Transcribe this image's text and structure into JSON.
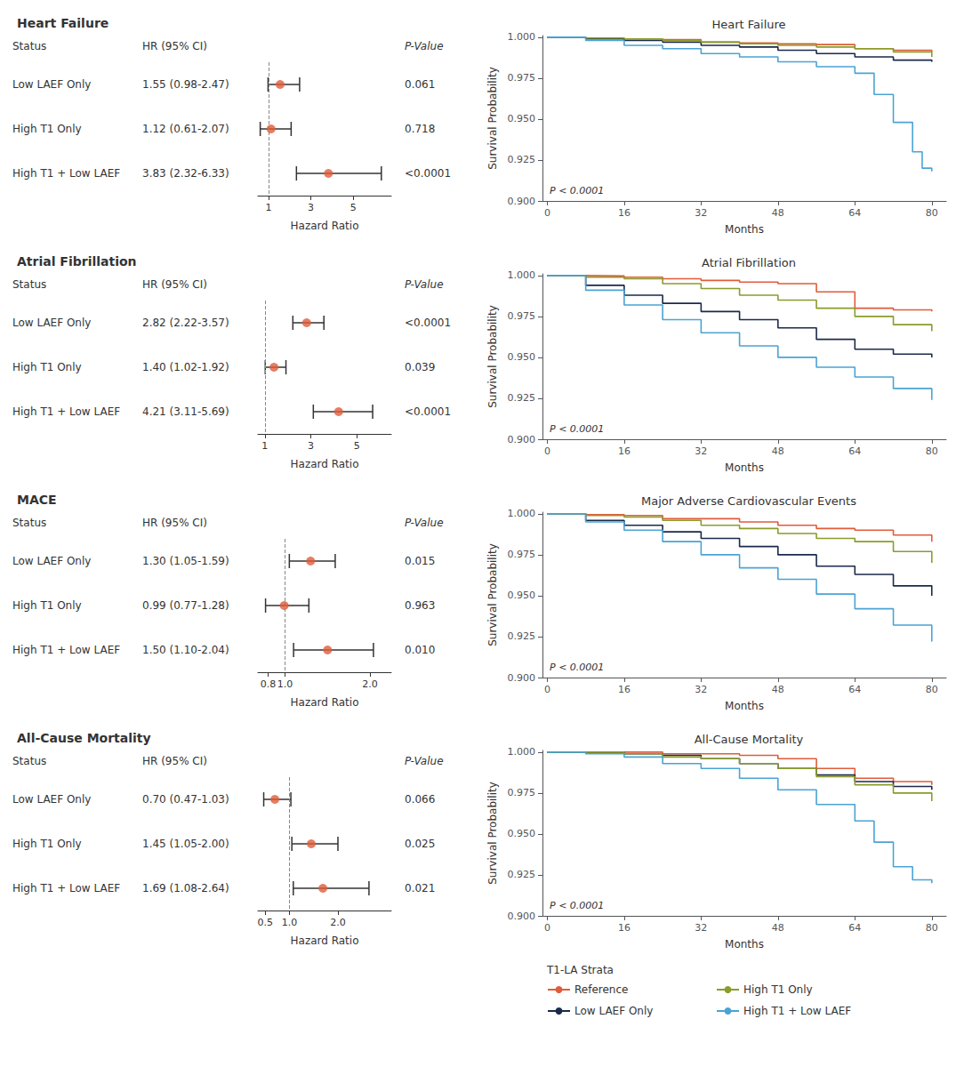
{
  "chart_data": [
    {
      "type": "forest",
      "title": "Heart Failure",
      "columns": [
        "Status",
        "HR (95% CI)",
        "P-Value"
      ],
      "categories": [
        "Low LAEF Only",
        "High T1 Only",
        "High T1 + Low LAEF"
      ],
      "ci_labels": [
        "1.55 (0.98-2.47)",
        "1.12 (0.61-2.07)",
        "3.83 (2.32-6.33)"
      ],
      "p_values": [
        "0.061",
        "0.718",
        "<0.0001"
      ],
      "values": [
        1.55,
        1.12,
        3.83
      ],
      "lo": [
        0.98,
        0.61,
        2.32
      ],
      "hi": [
        2.47,
        2.07,
        6.33
      ],
      "reference_line": 1,
      "color": "#E05C3A",
      "xlim": [
        0.5,
        6.8
      ],
      "xticks": [
        1,
        3,
        5
      ],
      "xlabel": "Hazard Ratio",
      "grid": false
    },
    {
      "type": "step",
      "title": "Heart Failure",
      "xlabel": "Months",
      "ylabel": "Survival Probability",
      "xlim": [
        -1,
        83
      ],
      "xticks": [
        0,
        16,
        32,
        48,
        64,
        80
      ],
      "ylim": [
        0.9,
        1.001
      ],
      "yticks": [
        {
          "value": 0.9,
          "label": "0.900"
        },
        0.925,
        {
          "value": 0.95,
          "label": "0.950"
        },
        0.975,
        {
          "value": 1,
          "label": "1.000"
        }
      ],
      "annotation": "P < 0.0001",
      "grid": false,
      "series": [
        {
          "name": "Reference",
          "color": "#E05C3A",
          "x": [
            0,
            8,
            16,
            24,
            32,
            40,
            48,
            56,
            64,
            72,
            80
          ],
          "values": [
            1.0,
            0.9995,
            0.999,
            0.9985,
            0.997,
            0.9965,
            0.996,
            0.9955,
            0.993,
            0.992,
            0.991
          ]
        },
        {
          "name": "Low LAEF Only",
          "color": "#1B2A4A",
          "x": [
            0,
            8,
            16,
            24,
            32,
            40,
            48,
            56,
            64,
            72,
            80
          ],
          "values": [
            1.0,
            0.999,
            0.998,
            0.997,
            0.995,
            0.994,
            0.992,
            0.99,
            0.988,
            0.986,
            0.985
          ]
        },
        {
          "name": "High T1 Only",
          "color": "#8B9C2A",
          "x": [
            0,
            8,
            16,
            24,
            32,
            40,
            48,
            56,
            64,
            72,
            80
          ],
          "values": [
            1.0,
            0.9995,
            0.999,
            0.998,
            0.997,
            0.996,
            0.995,
            0.994,
            0.993,
            0.991,
            0.988
          ]
        },
        {
          "name": "High T1 + Low LAEF",
          "color": "#4BA3D4",
          "x": [
            0,
            8,
            16,
            24,
            32,
            40,
            48,
            56,
            64,
            68,
            72,
            76,
            78,
            80
          ],
          "values": [
            1.0,
            0.998,
            0.995,
            0.993,
            0.99,
            0.988,
            0.985,
            0.982,
            0.978,
            0.965,
            0.948,
            0.93,
            0.92,
            0.918
          ]
        }
      ]
    },
    {
      "type": "forest",
      "title": "Atrial Fibrillation",
      "columns": [
        "Status",
        "HR (95% CI)",
        "P-Value"
      ],
      "categories": [
        "Low LAEF Only",
        "High T1 Only",
        "High T1 + Low LAEF"
      ],
      "ci_labels": [
        "2.82 (2.22-3.57)",
        "1.40 (1.02-1.92)",
        "4.21 (3.11-5.69)"
      ],
      "p_values": [
        "<0.0001",
        "0.039",
        "<0.0001"
      ],
      "values": [
        2.82,
        1.4,
        4.21
      ],
      "lo": [
        2.22,
        1.02,
        3.11
      ],
      "hi": [
        3.57,
        1.92,
        5.69
      ],
      "reference_line": 1,
      "color": "#E05C3A",
      "xlim": [
        0.7,
        6.5
      ],
      "xticks": [
        1,
        3,
        5
      ],
      "xlabel": "Hazard Ratio",
      "grid": false
    },
    {
      "type": "step",
      "title": "Atrial Fibrillation",
      "xlabel": "Months",
      "ylabel": "Survival Probability",
      "xlim": [
        -1,
        83
      ],
      "xticks": [
        0,
        16,
        32,
        48,
        64,
        80
      ],
      "ylim": [
        0.9,
        1.001
      ],
      "yticks": [
        {
          "value": 0.9,
          "label": "0.900"
        },
        0.925,
        {
          "value": 0.95,
          "label": "0.950"
        },
        0.975,
        {
          "value": 1,
          "label": "1.000"
        }
      ],
      "annotation": "P < 0.0001",
      "grid": false,
      "series": [
        {
          "name": "Reference",
          "color": "#E05C3A",
          "x": [
            0,
            8,
            16,
            24,
            32,
            40,
            48,
            56,
            64,
            72,
            80
          ],
          "values": [
            1.0,
            0.9998,
            0.999,
            0.998,
            0.997,
            0.996,
            0.995,
            0.99,
            0.98,
            0.979,
            0.978
          ]
        },
        {
          "name": "Low LAEF Only",
          "color": "#1B2A4A",
          "x": [
            0,
            8,
            16,
            24,
            32,
            40,
            48,
            56,
            64,
            72,
            80
          ],
          "values": [
            1.0,
            0.994,
            0.988,
            0.983,
            0.978,
            0.973,
            0.968,
            0.961,
            0.955,
            0.952,
            0.95
          ]
        },
        {
          "name": "High T1 Only",
          "color": "#8B9C2A",
          "x": [
            0,
            8,
            16,
            24,
            32,
            40,
            48,
            56,
            64,
            72,
            80
          ],
          "values": [
            1.0,
            0.999,
            0.998,
            0.995,
            0.992,
            0.988,
            0.985,
            0.98,
            0.975,
            0.97,
            0.966
          ]
        },
        {
          "name": "High T1 + Low LAEF",
          "color": "#4BA3D4",
          "x": [
            0,
            8,
            16,
            24,
            32,
            40,
            48,
            56,
            64,
            72,
            80
          ],
          "values": [
            1.0,
            0.991,
            0.982,
            0.973,
            0.965,
            0.957,
            0.95,
            0.944,
            0.938,
            0.931,
            0.924
          ]
        }
      ]
    },
    {
      "type": "forest",
      "title": "MACE",
      "columns": [
        "Status",
        "HR (95% CI)",
        "P-Value"
      ],
      "categories": [
        "Low LAEF Only",
        "High T1 Only",
        "High T1 + Low LAEF"
      ],
      "ci_labels": [
        "1.30 (1.05-1.59)",
        "0.99 (0.77-1.28)",
        "1.50 (1.10-2.04)"
      ],
      "p_values": [
        "0.015",
        "0.963",
        "0.010"
      ],
      "values": [
        1.3,
        0.99,
        1.5
      ],
      "lo": [
        1.05,
        0.77,
        1.1
      ],
      "hi": [
        1.59,
        1.28,
        2.04
      ],
      "reference_line": 1,
      "color": "#E05C3A",
      "xlim": [
        0.68,
        2.25
      ],
      "xticks": [
        0.8,
        {
          "value": 1,
          "label": "1.0"
        },
        {
          "value": 2,
          "label": "2.0"
        }
      ],
      "xlabel": "Hazard Ratio",
      "grid": false
    },
    {
      "type": "step",
      "title": "Major Adverse Cardiovascular Events",
      "xlabel": "Months",
      "ylabel": "Survival Probability",
      "xlim": [
        -1,
        83
      ],
      "xticks": [
        0,
        16,
        32,
        48,
        64,
        80
      ],
      "ylim": [
        0.9,
        1.001
      ],
      "yticks": [
        {
          "value": 0.9,
          "label": "0.900"
        },
        0.925,
        {
          "value": 0.95,
          "label": "0.950"
        },
        0.975,
        {
          "value": 1,
          "label": "1.000"
        }
      ],
      "annotation": "P < 0.0001",
      "grid": false,
      "series": [
        {
          "name": "Reference",
          "color": "#E05C3A",
          "x": [
            0,
            8,
            16,
            24,
            32,
            40,
            48,
            56,
            64,
            72,
            80
          ],
          "values": [
            1.0,
            0.9995,
            0.999,
            0.997,
            0.997,
            0.995,
            0.993,
            0.991,
            0.99,
            0.987,
            0.983
          ]
        },
        {
          "name": "Low LAEF Only",
          "color": "#1B2A4A",
          "x": [
            0,
            8,
            16,
            24,
            32,
            40,
            48,
            56,
            64,
            72,
            80
          ],
          "values": [
            1.0,
            0.996,
            0.993,
            0.989,
            0.985,
            0.98,
            0.975,
            0.968,
            0.963,
            0.956,
            0.95
          ]
        },
        {
          "name": "High T1 Only",
          "color": "#8B9C2A",
          "x": [
            0,
            8,
            16,
            24,
            32,
            40,
            48,
            56,
            64,
            72,
            80
          ],
          "values": [
            1.0,
            0.999,
            0.998,
            0.996,
            0.993,
            0.991,
            0.988,
            0.985,
            0.983,
            0.977,
            0.97
          ]
        },
        {
          "name": "High T1 + Low LAEF",
          "color": "#4BA3D4",
          "x": [
            0,
            8,
            16,
            24,
            32,
            40,
            48,
            56,
            64,
            72,
            80
          ],
          "values": [
            1.0,
            0.995,
            0.99,
            0.983,
            0.975,
            0.967,
            0.96,
            0.951,
            0.942,
            0.932,
            0.922
          ]
        }
      ]
    },
    {
      "type": "forest",
      "title": "All-Cause Mortality",
      "columns": [
        "Status",
        "HR (95% CI)",
        "P-Value"
      ],
      "categories": [
        "Low LAEF Only",
        "High T1 Only",
        "High T1 + Low LAEF"
      ],
      "ci_labels": [
        "0.70 (0.47-1.03)",
        "1.45 (1.05-2.00)",
        "1.69 (1.08-2.64)"
      ],
      "p_values": [
        "0.066",
        "0.025",
        "0.021"
      ],
      "values": [
        0.7,
        1.45,
        1.69
      ],
      "lo": [
        0.47,
        1.05,
        1.08
      ],
      "hi": [
        1.03,
        2.0,
        2.64
      ],
      "reference_line": 1,
      "color": "#E05C3A",
      "xlim": [
        0.35,
        3.1
      ],
      "xticks": [
        0.5,
        {
          "value": 1,
          "label": "1.0"
        },
        {
          "value": 2,
          "label": "2.0"
        }
      ],
      "xlabel": "Hazard Ratio",
      "grid": false
    },
    {
      "type": "step",
      "title": "All-Cause Mortality",
      "xlabel": "Months",
      "ylabel": "Survival Probability",
      "xlim": [
        -1,
        83
      ],
      "xticks": [
        0,
        16,
        32,
        48,
        64,
        80
      ],
      "ylim": [
        0.9,
        1.001
      ],
      "yticks": [
        {
          "value": 0.9,
          "label": "0.900"
        },
        0.925,
        {
          "value": 0.95,
          "label": "0.950"
        },
        0.975,
        {
          "value": 1,
          "label": "1.000"
        }
      ],
      "annotation": "P < 0.0001",
      "grid": false,
      "legend": "bottom",
      "legend_title": "T1-LA Strata",
      "series": [
        {
          "name": "Reference",
          "color": "#E05C3A",
          "x": [
            0,
            8,
            16,
            24,
            32,
            40,
            48,
            56,
            64,
            72,
            80
          ],
          "values": [
            1.0,
            1.0,
            1.0,
            0.999,
            0.999,
            0.998,
            0.996,
            0.99,
            0.984,
            0.982,
            0.98
          ]
        },
        {
          "name": "Low LAEF Only",
          "color": "#1B2A4A",
          "x": [
            0,
            8,
            16,
            24,
            32,
            40,
            48,
            56,
            64,
            72,
            80
          ],
          "values": [
            1.0,
            1.0,
            0.999,
            0.998,
            0.996,
            0.993,
            0.99,
            0.986,
            0.982,
            0.979,
            0.977
          ]
        },
        {
          "name": "High T1 Only",
          "color": "#8B9C2A",
          "x": [
            0,
            8,
            16,
            24,
            32,
            40,
            48,
            56,
            64,
            72,
            80
          ],
          "values": [
            1.0,
            1.0,
            0.999,
            0.997,
            0.996,
            0.993,
            0.99,
            0.985,
            0.98,
            0.975,
            0.97
          ]
        },
        {
          "name": "High T1 + Low LAEF",
          "color": "#4BA3D4",
          "x": [
            0,
            8,
            16,
            24,
            32,
            40,
            48,
            56,
            64,
            68,
            72,
            76,
            80
          ],
          "values": [
            1.0,
            0.999,
            0.997,
            0.993,
            0.99,
            0.984,
            0.977,
            0.968,
            0.958,
            0.945,
            0.93,
            0.922,
            0.92
          ]
        }
      ]
    }
  ]
}
